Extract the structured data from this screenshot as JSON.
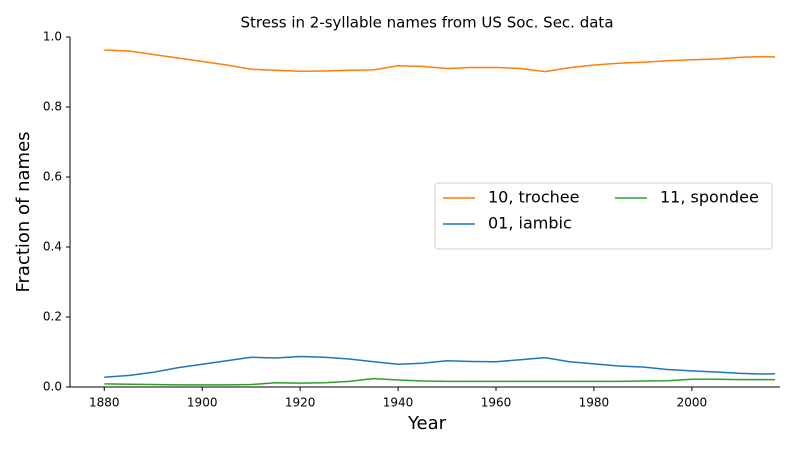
{
  "chart_data": {
    "type": "line",
    "title": "Stress in 2-syllable names from US Soc. Sec. data",
    "x_label": "Year",
    "y_label": "Fraction of names",
    "x": [
      1880,
      1885,
      1890,
      1895,
      1900,
      1905,
      1910,
      1915,
      1920,
      1925,
      1930,
      1935,
      1940,
      1945,
      1950,
      1955,
      1960,
      1965,
      1970,
      1975,
      1980,
      1985,
      1990,
      1995,
      2000,
      2005,
      2010,
      2015,
      2017
    ],
    "series": [
      {
        "name": "10, trochee",
        "color": "#ff7f0e",
        "values": [
          0.963,
          0.96,
          0.95,
          0.94,
          0.93,
          0.92,
          0.908,
          0.905,
          0.902,
          0.903,
          0.905,
          0.906,
          0.918,
          0.916,
          0.91,
          0.913,
          0.913,
          0.91,
          0.901,
          0.912,
          0.92,
          0.925,
          0.928,
          0.932,
          0.935,
          0.937,
          0.942,
          0.944,
          0.943
        ]
      },
      {
        "name": "01, iambic",
        "color": "#1f77b4",
        "values": [
          0.028,
          0.033,
          0.042,
          0.055,
          0.065,
          0.075,
          0.085,
          0.083,
          0.087,
          0.085,
          0.08,
          0.072,
          0.065,
          0.068,
          0.075,
          0.073,
          0.072,
          0.078,
          0.084,
          0.072,
          0.066,
          0.06,
          0.057,
          0.05,
          0.046,
          0.043,
          0.039,
          0.037,
          0.038
        ]
      },
      {
        "name": "11, spondee",
        "color": "#2ca02c",
        "values": [
          0.009,
          0.008,
          0.007,
          0.006,
          0.006,
          0.006,
          0.007,
          0.012,
          0.011,
          0.012,
          0.016,
          0.024,
          0.02,
          0.017,
          0.016,
          0.016,
          0.016,
          0.016,
          0.016,
          0.016,
          0.016,
          0.016,
          0.017,
          0.018,
          0.022,
          0.022,
          0.021,
          0.021,
          0.021
        ]
      }
    ],
    "xlim": [
      1873,
      2018
    ],
    "ylim": [
      0,
      1
    ],
    "xticks": [
      1880,
      1900,
      1920,
      1940,
      1960,
      1980,
      2000
    ],
    "yticks": [
      {
        "value": 0,
        "label": "0.0"
      },
      0.2,
      0.4,
      0.6,
      0.8,
      {
        "value": 1,
        "label": "1.0"
      }
    ],
    "legend_position": "center right"
  }
}
